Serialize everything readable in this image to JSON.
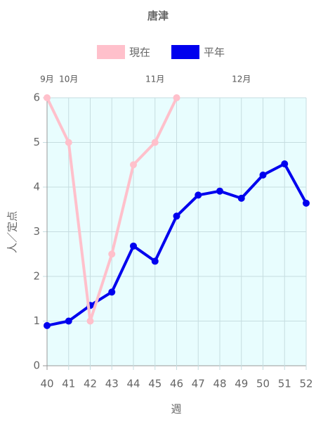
{
  "chart_data": {
    "type": "line",
    "title": "唐津",
    "x": [
      40,
      41,
      42,
      43,
      44,
      45,
      46,
      47,
      48,
      49,
      50,
      51,
      52
    ],
    "xlim": [
      40,
      52
    ],
    "xticks": [
      40,
      41,
      42,
      43,
      44,
      45,
      46,
      47,
      48,
      49,
      50,
      51,
      52
    ],
    "ylim": [
      0,
      6
    ],
    "yticks": [
      0,
      1,
      2,
      3,
      4,
      5,
      6
    ],
    "xlabel": "週",
    "ylabel": "人／定点",
    "month_labels": [
      {
        "value": 40,
        "label": "9月"
      },
      {
        "value": 41,
        "label": "10月"
      },
      {
        "value": 45,
        "label": "11月"
      },
      {
        "value": 49,
        "label": "12月"
      }
    ],
    "grid": true,
    "background": "#e8fdfe",
    "legend": "top",
    "series": [
      {
        "name": "現在",
        "color": "#ffc0cb",
        "values": [
          6,
          5,
          1,
          2.5,
          4.5,
          5,
          6,
          null,
          null,
          null,
          null,
          null,
          null
        ]
      },
      {
        "name": "平年",
        "color": "#0000ee",
        "values": [
          0.9,
          1.0,
          1.35,
          1.65,
          2.68,
          2.34,
          3.35,
          3.82,
          3.91,
          3.75,
          4.27,
          4.52,
          3.64
        ]
      }
    ]
  }
}
